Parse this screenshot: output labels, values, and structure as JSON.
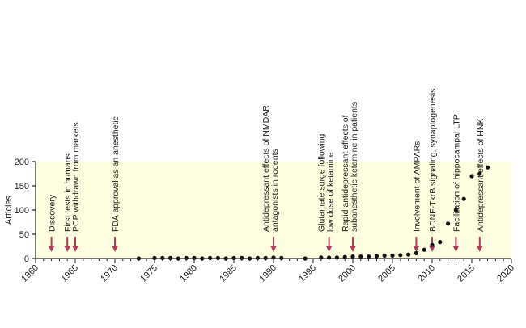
{
  "chart_data": {
    "type": "scatter",
    "ylabel": "Articles",
    "xlabel": "",
    "xlim": [
      1960,
      2020
    ],
    "ylim": [
      0,
      200
    ],
    "xticks": [
      "1960",
      "1965",
      "1970",
      "1975",
      "1980",
      "1985",
      "1990",
      "1995",
      "2000",
      "2005",
      "2010",
      "2015",
      "2020"
    ],
    "yticks": [
      "0",
      "50",
      "100",
      "150",
      "200"
    ],
    "grid": false,
    "background_band": "#fdfde0",
    "colors": {
      "points": "#111111",
      "arrows": "#b23a5a",
      "axis": "#222222"
    },
    "x": [
      1973,
      1975,
      1976,
      1977,
      1978,
      1979,
      1980,
      1981,
      1982,
      1983,
      1984,
      1985,
      1986,
      1987,
      1988,
      1989,
      1990,
      1991,
      1994,
      1996,
      1997,
      1998,
      1999,
      2000,
      2001,
      2002,
      2003,
      2004,
      2005,
      2006,
      2007,
      2008,
      2009,
      2010,
      2011,
      2012,
      2013,
      2014,
      2015,
      2016,
      2017
    ],
    "y": [
      0,
      1,
      1,
      1,
      0,
      1,
      1,
      0,
      1,
      1,
      0,
      1,
      1,
      0,
      1,
      1,
      2,
      1,
      0,
      2,
      2,
      2,
      3,
      4,
      4,
      4,
      5,
      6,
      6,
      7,
      8,
      11,
      18,
      28,
      34,
      72,
      100,
      123,
      170,
      175,
      188
    ],
    "annotations": [
      {
        "year": 1962,
        "lines": [
          "Discovery"
        ]
      },
      {
        "year": 1964,
        "lines": [
          "First tests in humans"
        ]
      },
      {
        "year": 1965,
        "lines": [
          "PCP withdrawn from markets"
        ]
      },
      {
        "year": 1970,
        "lines": [
          "FDA approval as an anesthetic"
        ]
      },
      {
        "year": 1990,
        "lines": [
          "Antidepressant effects of NMDAR",
          "antagonists in rodents"
        ]
      },
      {
        "year": 1997,
        "lines": [
          "Glutamate surge following",
          "low dose of ketamine"
        ]
      },
      {
        "year": 2000,
        "lines": [
          "Rapid antidepressant effects of",
          "subanesthetic ketamine in patients"
        ]
      },
      {
        "year": 2008,
        "lines": [
          "Involvement of AMPARs"
        ]
      },
      {
        "year": 2010,
        "lines": [
          "BDNF-TkrB signaling, synaptogenesis"
        ]
      },
      {
        "year": 2013,
        "lines": [
          "Facilitation of hippocampal LTP"
        ]
      },
      {
        "year": 2016,
        "lines": [
          "Antidepressant effects of HNK"
        ]
      }
    ]
  }
}
